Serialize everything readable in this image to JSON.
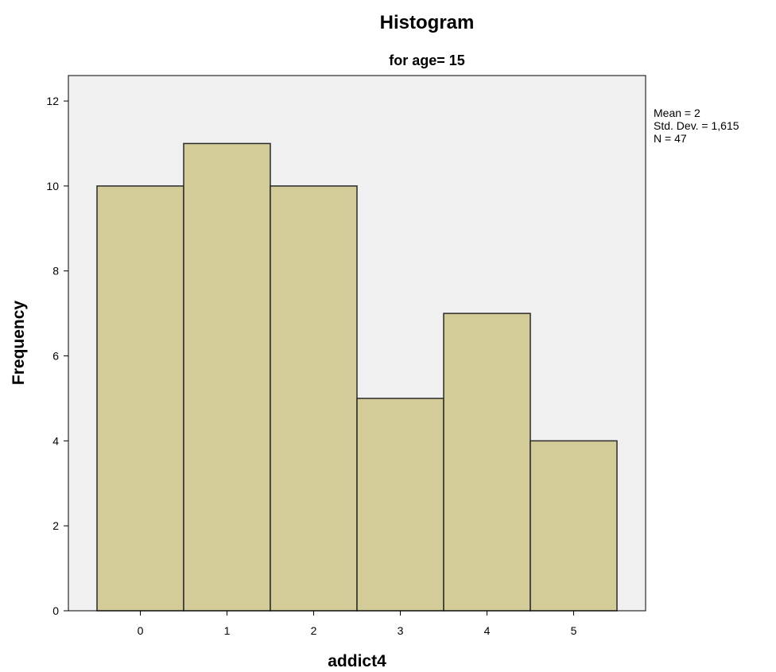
{
  "chart_data": {
    "type": "bar",
    "title": "Histogram",
    "subtitle": "for age= 15",
    "xlabel": "addict4",
    "ylabel": "Frequency",
    "categories": [
      "0",
      "1",
      "2",
      "3",
      "4",
      "5"
    ],
    "values": [
      10,
      11,
      10,
      5,
      7,
      4
    ],
    "x_ticks": [
      "0",
      "1",
      "2",
      "3",
      "4",
      "5"
    ],
    "y_ticks": [
      "0",
      "2",
      "4",
      "6",
      "8",
      "10",
      "12"
    ],
    "ylim": [
      0,
      12.6
    ],
    "grid": false,
    "stats": [
      "Mean = 2",
      "Std. Dev. = 1,615",
      "N = 47"
    ],
    "legend_position": "right",
    "colors": {
      "bar_fill": "#d4cc98",
      "bar_stroke": "#2a2a2a",
      "plot_background": "#f0f0f0",
      "frame": "#000000"
    }
  }
}
